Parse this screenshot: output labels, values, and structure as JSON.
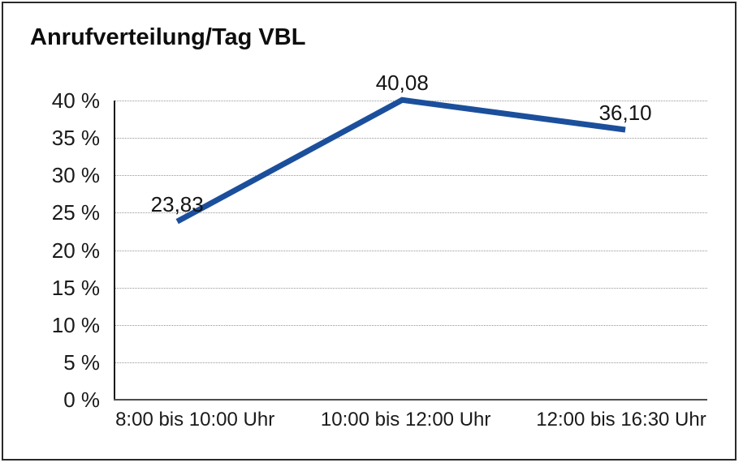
{
  "window": {
    "background": "#ffffff",
    "border_color": "#2a2a2a"
  },
  "chart_data": {
    "type": "line",
    "title": "Anrufverteilung/Tag VBL",
    "categories": [
      "8:00 bis 10:00 Uhr",
      "10:00 bis 12:00 Uhr",
      "12:00 bis 16:30 Uhr"
    ],
    "values": [
      23.83,
      40.08,
      36.1
    ],
    "data_labels": [
      "23,83",
      "40,08",
      "36,10"
    ],
    "ytick_labels": [
      "0 %",
      "5 %",
      "10 %",
      "15 %",
      "20 %",
      "25 %",
      "30 %",
      "35 %",
      "40 %"
    ],
    "ylim": [
      0,
      40
    ],
    "ytick_step": 5,
    "xlabel": "",
    "ylabel": "",
    "grid": "horizontal-dotted",
    "legend": "none",
    "series_name": "Anrufverteilung/Tag VBL",
    "colors": {
      "line": "#1b4f9c",
      "grid": "#979797",
      "axis": "#1a1a1a",
      "text": "#1a1a1a"
    }
  }
}
